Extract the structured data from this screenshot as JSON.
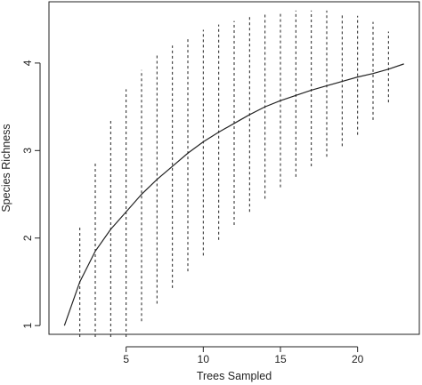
{
  "chart_data": {
    "type": "line",
    "title": "",
    "xlabel": "Trees Sampled",
    "ylabel": "Species Richness",
    "xlim": [
      0,
      24
    ],
    "ylim": [
      0.9,
      4.7
    ],
    "xticks": [
      5,
      10,
      15,
      20
    ],
    "yticks": [
      1,
      2,
      3,
      4
    ],
    "grid": false,
    "series": [
      {
        "style": "solid",
        "x": [
          1,
          2,
          3,
          4,
          5,
          6,
          7,
          8,
          9,
          10,
          11,
          12,
          13,
          14,
          15,
          16,
          17,
          18,
          19,
          20,
          21,
          22,
          23
        ],
        "y": [
          1.0,
          1.5,
          1.85,
          2.1,
          2.3,
          2.5,
          2.67,
          2.82,
          2.97,
          3.1,
          3.21,
          3.31,
          3.41,
          3.5,
          3.57,
          3.63,
          3.69,
          3.74,
          3.79,
          3.84,
          3.88,
          3.93,
          3.99
        ]
      }
    ],
    "error_bars": {
      "style": "dashed",
      "x": [
        2,
        3,
        4,
        5,
        6,
        7,
        8,
        9,
        10,
        11,
        12,
        13,
        14,
        15,
        16,
        17,
        18,
        19,
        20,
        21,
        22
      ],
      "lower": [
        0.87,
        0.87,
        0.87,
        0.87,
        1.05,
        1.25,
        1.43,
        1.62,
        1.8,
        1.98,
        2.15,
        2.3,
        2.45,
        2.58,
        2.7,
        2.82,
        2.93,
        3.05,
        3.18,
        3.35,
        3.55
      ],
      "upper": [
        2.15,
        2.88,
        3.35,
        3.7,
        3.92,
        4.09,
        4.2,
        4.3,
        4.38,
        4.44,
        4.48,
        4.54,
        4.57,
        4.59,
        4.6,
        4.6,
        4.6,
        4.57,
        4.54,
        4.47,
        4.36
      ]
    }
  }
}
